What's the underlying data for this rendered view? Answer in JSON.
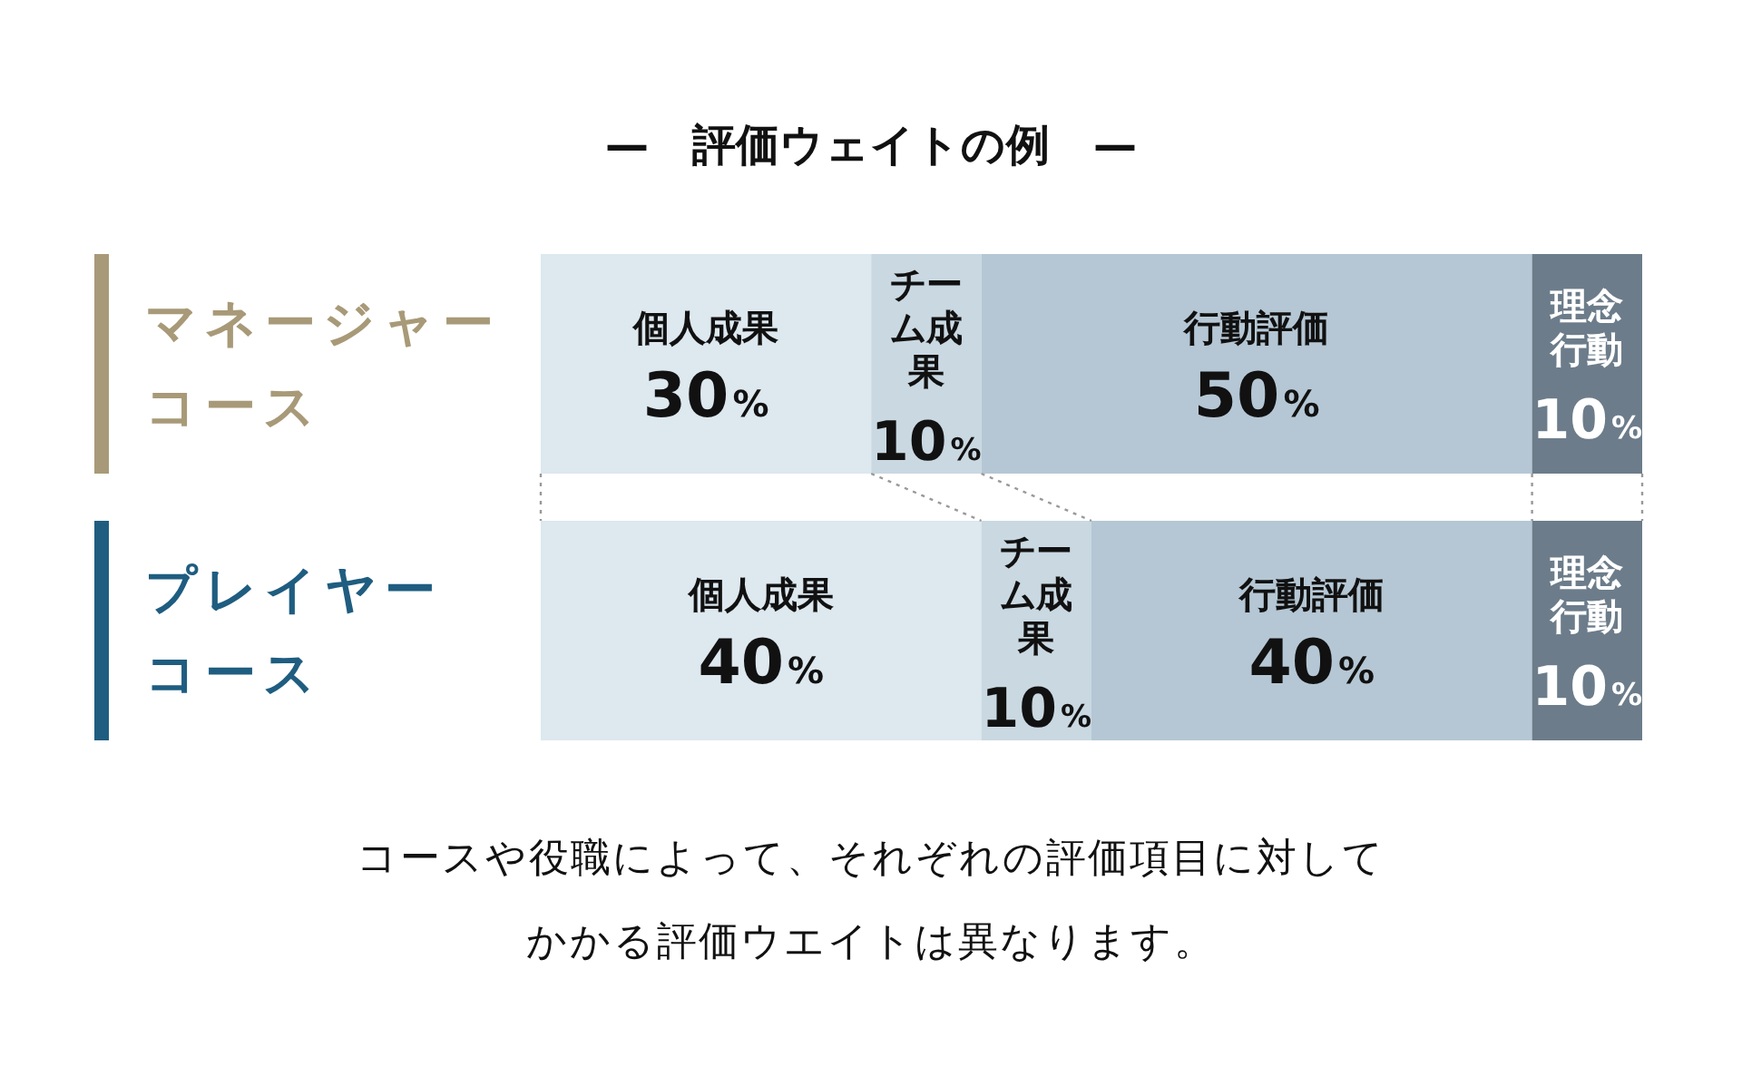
{
  "chart_data": {
    "type": "bar",
    "orientation": "horizontal",
    "stacked": true,
    "title": "—　評価ウェイトの例　—",
    "categories": [
      "マネージャーコース",
      "プレイヤーコース"
    ],
    "series": [
      {
        "name": "個人成果",
        "color": "#dde8ef",
        "values": [
          30,
          40
        ],
        "value_labels": [
          "30%",
          "40%"
        ]
      },
      {
        "name": "チーム成果",
        "color": "#c9d8e1",
        "values": [
          10,
          10
        ],
        "value_labels": [
          "10%",
          "10%"
        ]
      },
      {
        "name": "行動評価",
        "color": "#b5c7d4",
        "values": [
          50,
          40
        ],
        "value_labels": [
          "50%",
          "40%"
        ]
      },
      {
        "name": "理念行動",
        "color": "#6c7c8a",
        "values": [
          10,
          10
        ],
        "value_labels": [
          "10%",
          "10%"
        ]
      }
    ],
    "annotations": [
      "コースや役職によって、それぞれの評価項目に対してかかる評価ウエイトは異なります。"
    ]
  }
}
